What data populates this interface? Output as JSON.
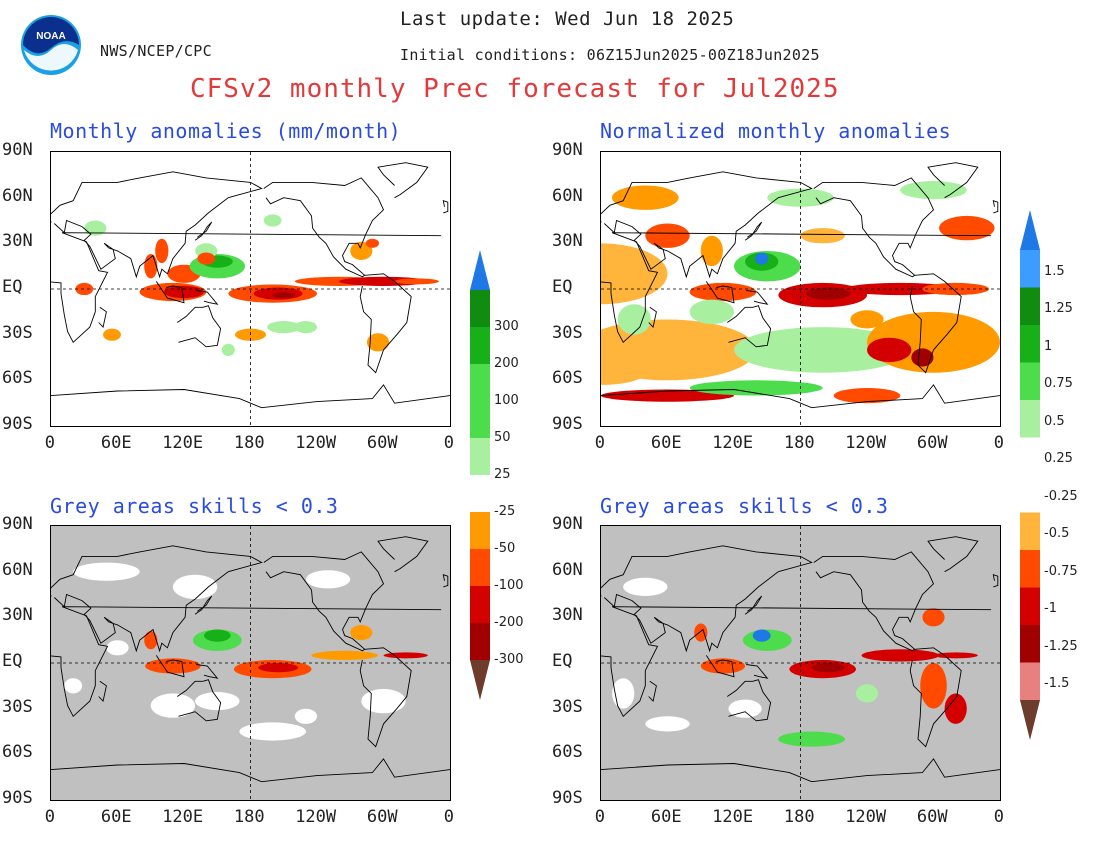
{
  "header": {
    "agency": "NWS/NCEP/CPC",
    "last_update": "Last update: Wed Jun 18 2025",
    "initial_conditions": "Initial conditions: 06Z15Jun2025-00Z18Jun2025",
    "title": "CFSv2 monthly Prec forecast for Jul2025",
    "logo_text": "NOAA"
  },
  "panels": [
    {
      "id": "tl",
      "title": "Monthly anomalies (mm/month)",
      "grey": false
    },
    {
      "id": "tr",
      "title": "Normalized monthly anomalies",
      "grey": false
    },
    {
      "id": "bl",
      "title": "Grey areas skills < 0.3",
      "grey": true
    },
    {
      "id": "br",
      "title": "Grey areas skills < 0.3",
      "grey": true
    }
  ],
  "axes": {
    "lat_labels": [
      "90N",
      "60N",
      "30N",
      "EQ",
      "30S",
      "60S",
      "90S"
    ],
    "lon_labels": [
      "0",
      "60E",
      "120E",
      "180",
      "120W",
      "60W",
      "0"
    ]
  },
  "colorbar_left": {
    "labels": [
      "300",
      "200",
      "100",
      "50",
      "25",
      "-25",
      "-50",
      "-100",
      "-200",
      "-300"
    ]
  },
  "colorbar_right": {
    "labels": [
      "1.5",
      "1.25",
      "1",
      "0.75",
      "0.5",
      "0.25",
      "-0.25",
      "-0.5",
      "-0.75",
      "-1",
      "-1.25",
      "-1.5"
    ]
  },
  "colors": {
    "green_lt": "#a8f0a0",
    "green_md": "#4cdc4c",
    "green_dk": "#18b018",
    "green_dkr": "#108c10",
    "blue": "#1e78e6",
    "blue_lt": "#3c9cff",
    "orange_lt": "#ffb43c",
    "orange": "#ff9a00",
    "red_or": "#ff4a00",
    "red": "#d40000",
    "red_dk": "#a00000",
    "brown": "#6e3c2c",
    "pink": "#e88080",
    "grey": "#c0c0c0",
    "title_red": "#e23a3a",
    "title_blue": "#2a4be0"
  }
}
